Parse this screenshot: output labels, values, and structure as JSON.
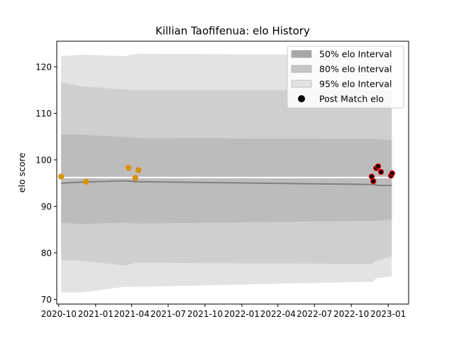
{
  "chart_data": {
    "type": "line",
    "title": "Killian Taofifenua: elo History",
    "xlabel": "",
    "ylabel": "elo score",
    "ylim": [
      69,
      125.5
    ],
    "xlim": [
      "2020-09-26",
      "2023-02-21"
    ],
    "yticks": [
      70,
      80,
      90,
      100,
      110,
      120
    ],
    "xticks": [
      "2020-10",
      "2021-01",
      "2021-04",
      "2021-07",
      "2021-10",
      "2022-01",
      "2022-04",
      "2022-07",
      "2022-10",
      "2023-01"
    ],
    "grid": false,
    "legend_placement": "top-right",
    "band_dates": [
      "2020-10-07",
      "2020-11-28",
      "2021-03-14",
      "2021-04-14",
      "2022-11-20",
      "2022-11-23",
      "2022-12-03",
      "2022-12-08",
      "2023-01-05",
      "2023-01-10"
    ],
    "mean": [
      95.0,
      95.2,
      95.5,
      95.3,
      94.7,
      94.7,
      94.6,
      94.5,
      94.5,
      94.5
    ],
    "band50": {
      "lower": [
        86.5,
        86.2,
        86.5,
        86.3,
        86.9,
        86.9,
        86.9,
        86.9,
        87.2,
        87.2
      ],
      "upper": [
        105.4,
        105.4,
        104.9,
        104.7,
        104.5,
        104.5,
        104.5,
        104.4,
        104.3,
        104.3
      ]
    },
    "band80": {
      "lower": [
        78.4,
        78.3,
        77.3,
        77.9,
        77.6,
        77.7,
        78.4,
        78.4,
        79.2,
        79.2
      ],
      "upper": [
        116.7,
        115.8,
        115.1,
        115.0,
        115.0,
        115.0,
        115.0,
        115.0,
        115.0,
        115.0
      ]
    },
    "band95": {
      "lower": [
        71.5,
        71.5,
        72.7,
        72.7,
        73.8,
        73.8,
        74.6,
        74.6,
        74.9,
        74.9
      ],
      "upper": [
        122.3,
        122.6,
        122.3,
        122.8,
        122.5,
        122.5,
        122.5,
        122.5,
        122.5,
        122.5
      ]
    },
    "reference_line": {
      "value": 96.2,
      "color": "#ffffff"
    },
    "series": [
      {
        "name": "Post Match elo",
        "x": [
          "2020-10-07",
          "2020-12-08",
          "2021-03-24",
          "2021-04-10",
          "2021-04-18",
          "2022-11-21",
          "2022-11-25",
          "2022-12-02",
          "2022-12-07",
          "2022-12-14",
          "2023-01-08",
          "2023-01-11"
        ],
        "y": [
          96.4,
          95.3,
          98.3,
          96.1,
          97.8,
          96.4,
          95.4,
          98.2,
          98.6,
          97.4,
          96.6,
          97.1
        ]
      }
    ],
    "point_style_groups": [
      {
        "x_from": "2020-10-01",
        "x_to": "2021-05-01",
        "fill": "#c0a000",
        "edge": "#ff7f0e"
      },
      {
        "x_from": "2022-11-01",
        "x_to": "2023-02-01",
        "fill": "#000000",
        "edge": "#ff0000"
      }
    ],
    "legend": [
      {
        "label": "50% elo Interval",
        "kind": "patch",
        "color": "#a8a8a8"
      },
      {
        "label": "80% elo Interval",
        "kind": "patch",
        "color": "#c6c6c6"
      },
      {
        "label": "95% elo Interval",
        "kind": "patch",
        "color": "#e2e2e2"
      },
      {
        "label": "Post Match elo",
        "kind": "marker",
        "color": "#000000"
      }
    ],
    "colors": {
      "band50": "#bcbcbc",
      "band80": "#cfcfcf",
      "band95": "#e3e3e3",
      "mean_line": "#808080"
    }
  }
}
